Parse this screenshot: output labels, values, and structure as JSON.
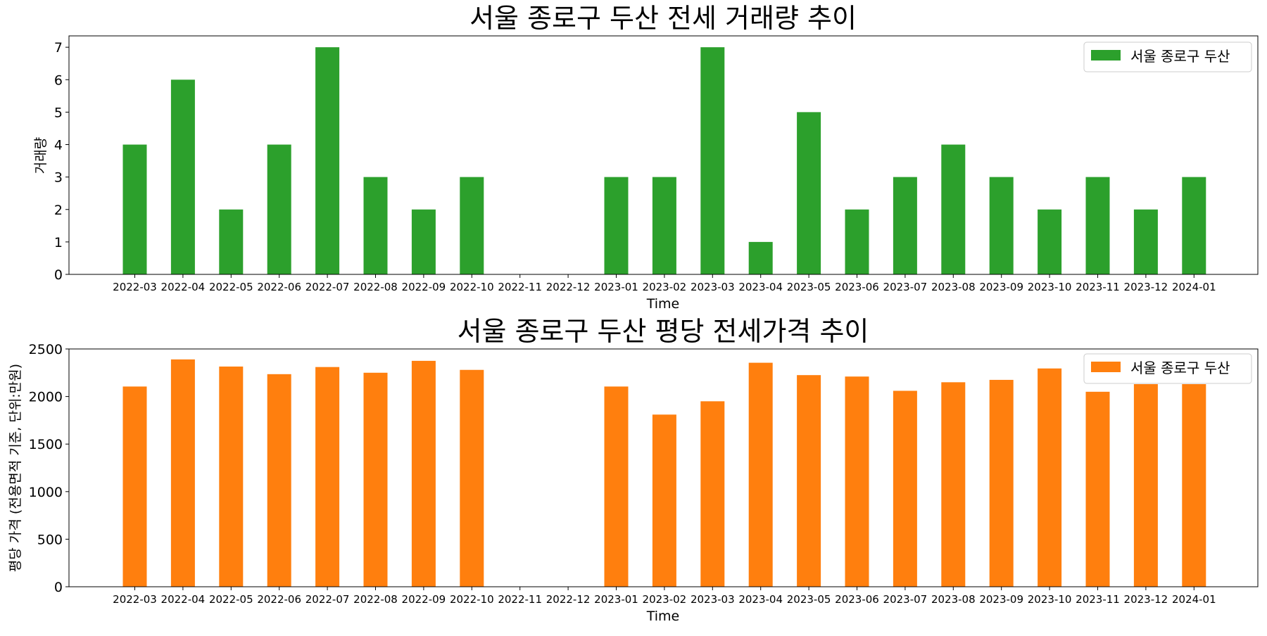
{
  "colors": {
    "volume": "#2ca02c",
    "price": "#ff7f0e",
    "axis": "#000000",
    "legend_border": "#cccccc"
  },
  "chart_data": [
    {
      "type": "bar",
      "title": "서울 종로구 두산 전세 거래량 추이",
      "xlabel": "Time",
      "ylabel": "거래량",
      "ylim": [
        0,
        7.35
      ],
      "yticks": [
        0,
        1,
        2,
        3,
        4,
        5,
        6,
        7
      ],
      "grid": false,
      "legend_position": "top-right",
      "categories": [
        "2022-03",
        "2022-04",
        "2022-05",
        "2022-06",
        "2022-07",
        "2022-08",
        "2022-09",
        "2022-10",
        "2022-11",
        "2022-12",
        "2023-01",
        "2023-02",
        "2023-03",
        "2023-04",
        "2023-05",
        "2023-06",
        "2023-07",
        "2023-08",
        "2023-09",
        "2023-10",
        "2023-11",
        "2023-12",
        "2024-01"
      ],
      "series": [
        {
          "name": "서울 종로구 두산",
          "color": "#2ca02c",
          "values": [
            4,
            6,
            2,
            4,
            7,
            3,
            2,
            3,
            0,
            0,
            3,
            3,
            7,
            1,
            5,
            2,
            3,
            4,
            3,
            2,
            3,
            2,
            3
          ]
        }
      ]
    },
    {
      "type": "bar",
      "title": "서울 종로구 두산 평당 전세가격 추이",
      "xlabel": "Time",
      "ylabel": "평당 가격 (전용면적 기준, 단위:만원)",
      "ylim": [
        0,
        2500
      ],
      "yticks": [
        0,
        500,
        1000,
        1500,
        2000,
        2500
      ],
      "grid": false,
      "legend_position": "top-right",
      "categories": [
        "2022-03",
        "2022-04",
        "2022-05",
        "2022-06",
        "2022-07",
        "2022-08",
        "2022-09",
        "2022-10",
        "2022-11",
        "2022-12",
        "2023-01",
        "2023-02",
        "2023-03",
        "2023-04",
        "2023-05",
        "2023-06",
        "2023-07",
        "2023-08",
        "2023-09",
        "2023-10",
        "2023-11",
        "2023-12",
        "2024-01"
      ],
      "series": [
        {
          "name": "서울 종로구 두산",
          "color": "#ff7f0e",
          "values": [
            2105,
            2390,
            2315,
            2235,
            2310,
            2250,
            2375,
            2280,
            0,
            0,
            2105,
            1810,
            1950,
            2355,
            2225,
            2210,
            2060,
            2150,
            2175,
            2295,
            2050,
            2130,
            2130
          ]
        }
      ]
    }
  ]
}
